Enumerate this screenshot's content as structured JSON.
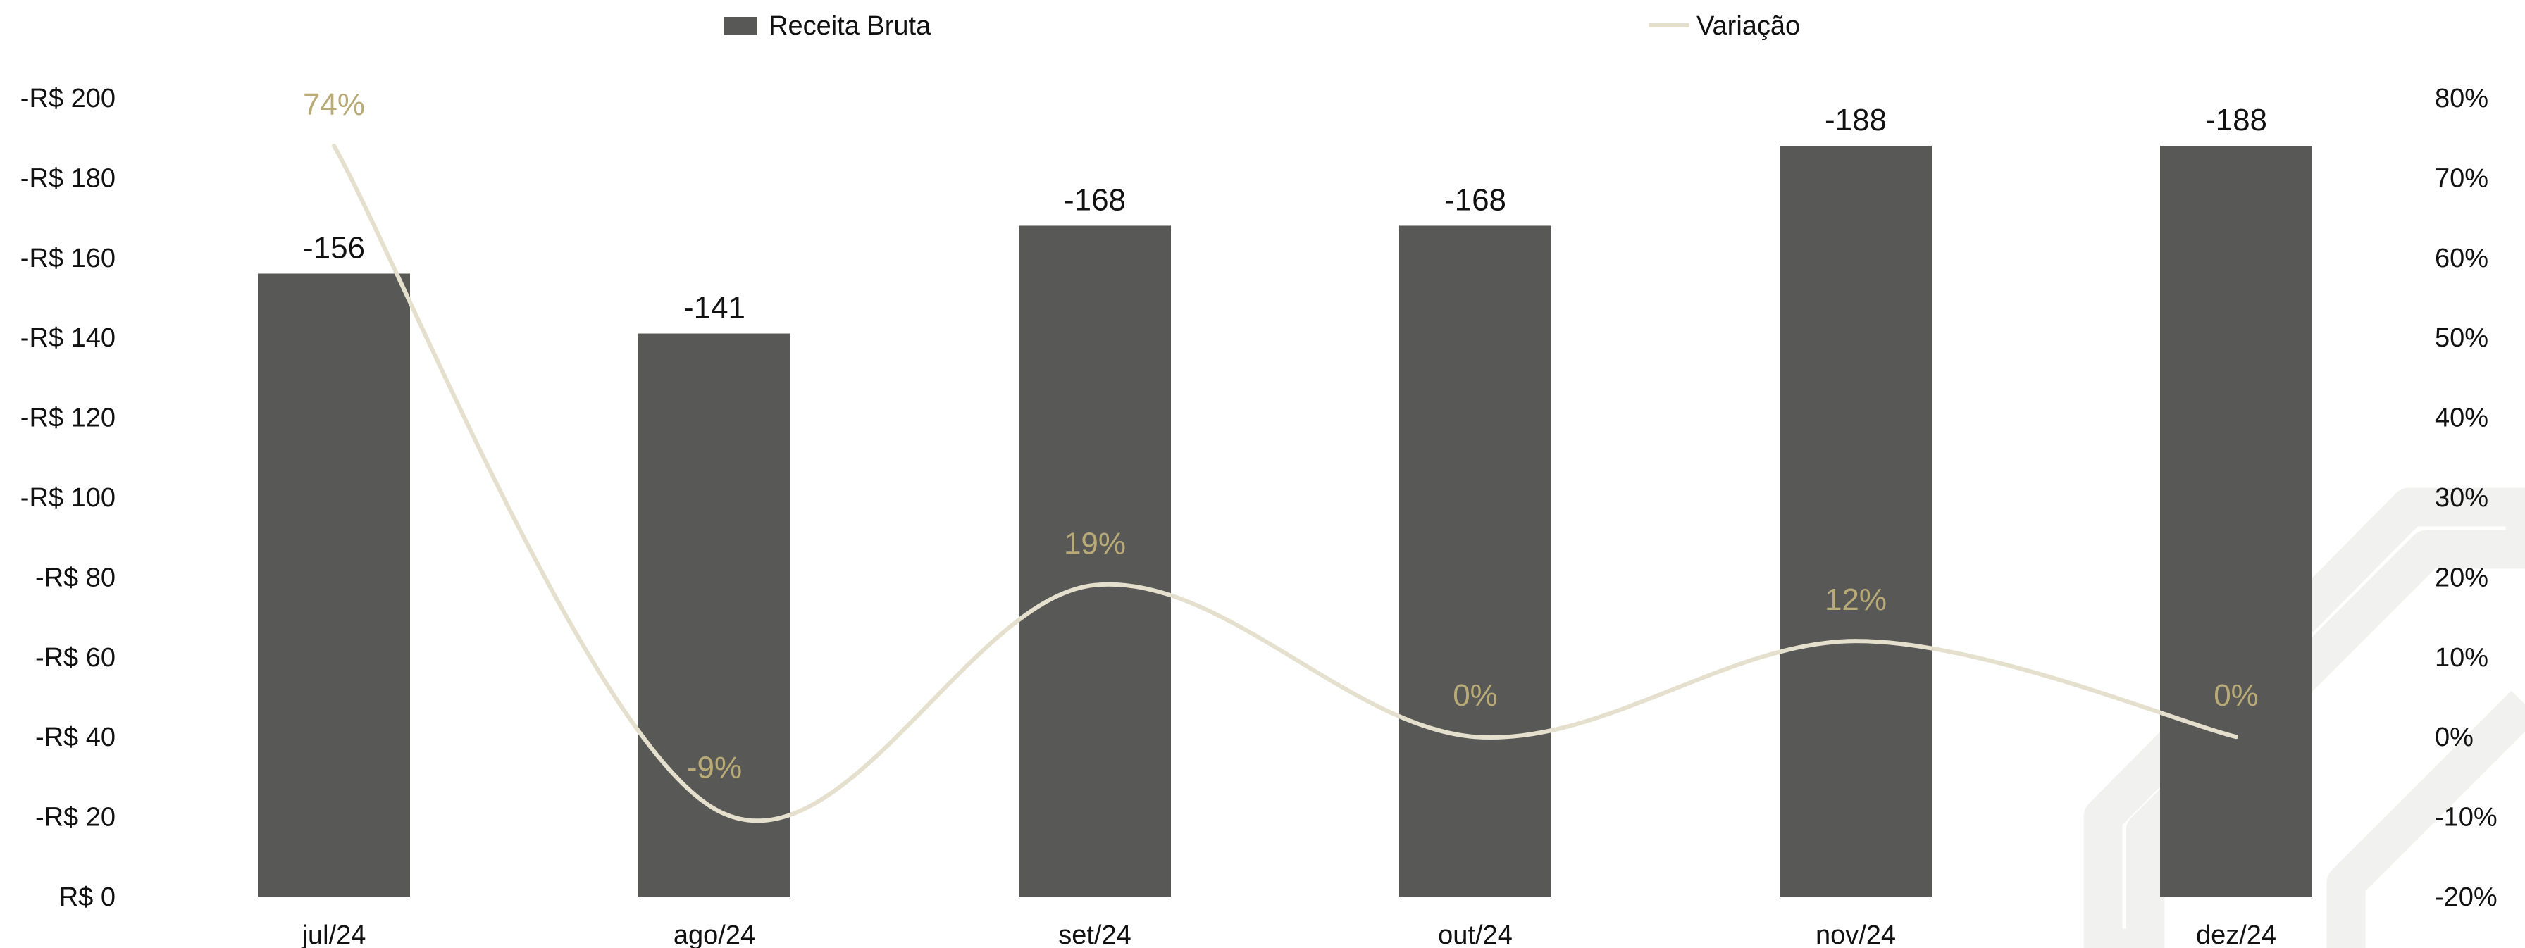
{
  "chart_data": {
    "type": "bar",
    "categories": [
      "jul/24",
      "ago/24",
      "set/24",
      "out/24",
      "nov/24",
      "dez/24"
    ],
    "series": [
      {
        "name": "Receita Bruta",
        "type": "bar",
        "axis": "left",
        "values": [
          156,
          141,
          168,
          168,
          188,
          188
        ],
        "labels": [
          "-156",
          "-141",
          "-168",
          "-168",
          "-188",
          "-188"
        ]
      },
      {
        "name": "Variação",
        "type": "line",
        "axis": "right",
        "values": [
          74,
          -9,
          19,
          0,
          12,
          0
        ],
        "labels": [
          "74%",
          "-9%",
          "19%",
          "0%",
          "12%",
          "0%"
        ]
      }
    ],
    "left_axis": {
      "ylim": [
        0,
        200
      ],
      "ticks": [
        0,
        20,
        40,
        60,
        80,
        100,
        120,
        140,
        160,
        180,
        200
      ],
      "tick_labels": [
        "R$ 0",
        "-R$ 20",
        "-R$ 40",
        "-R$ 60",
        "-R$ 80",
        "-R$ 100",
        "-R$ 120",
        "-R$ 140",
        "-R$ 160",
        "-R$ 180",
        "-R$ 200"
      ]
    },
    "right_axis": {
      "ylim": [
        -20,
        80
      ],
      "ticks": [
        -20,
        -10,
        0,
        10,
        20,
        30,
        40,
        50,
        60,
        70,
        80
      ],
      "tick_labels": [
        "-20%",
        "-10%",
        "0%",
        "10%",
        "20%",
        "30%",
        "40%",
        "50%",
        "60%",
        "70%",
        "80%"
      ]
    },
    "legend": {
      "placement": "top",
      "items": [
        "Receita Bruta",
        "Variação"
      ]
    },
    "grid": false,
    "colors": {
      "bar": "#585856",
      "line": "#e4e0cd",
      "line_label": "#b9ab78",
      "bar_label": "#111111",
      "axis_text": "#111111",
      "watermark": "#f1f1f0"
    }
  }
}
